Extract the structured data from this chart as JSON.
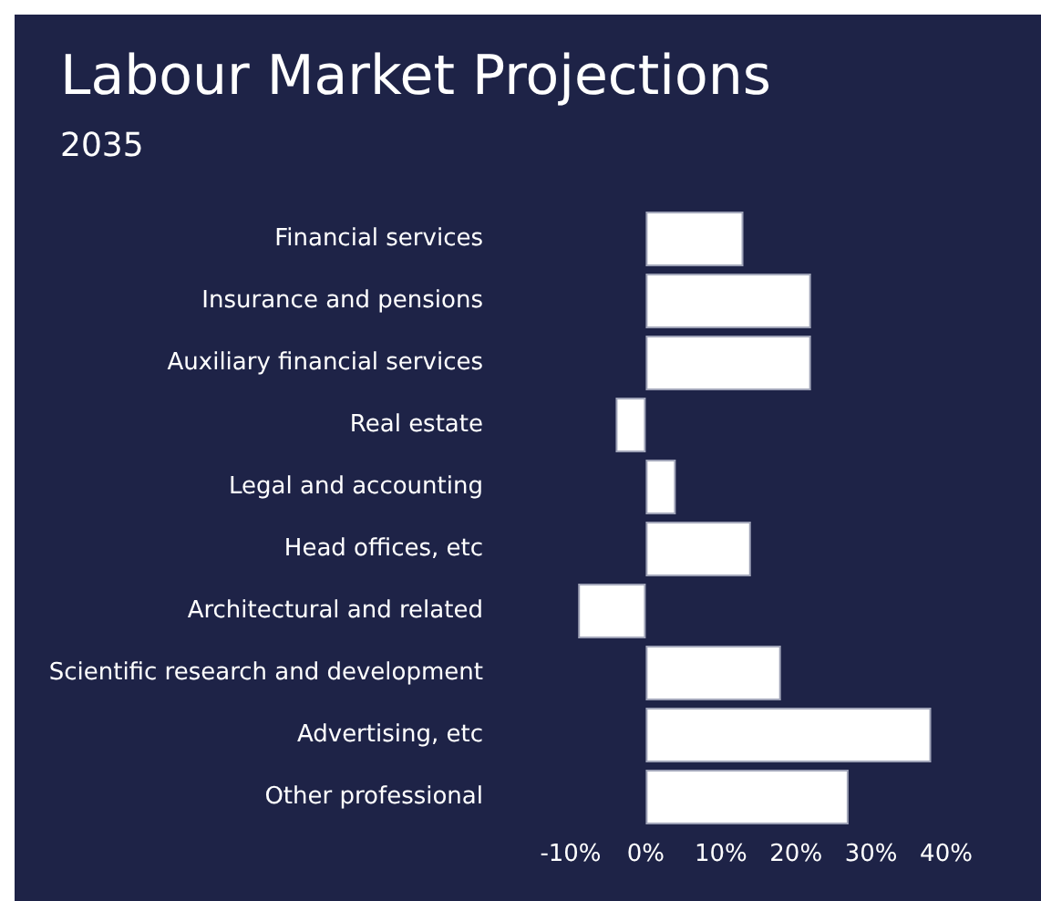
{
  "chart_data": {
    "type": "bar",
    "orientation": "horizontal",
    "title": "Labour Market Projections",
    "subtitle": "2035",
    "categories": [
      "Financial services",
      "Insurance and pensions",
      "Auxiliary financial services",
      "Real estate",
      "Legal and accounting",
      "Head offices, etc",
      "Architectural and related",
      "Scientific research and development",
      "Advertising, etc",
      "Other professional"
    ],
    "values": [
      13,
      22,
      22,
      -4,
      4,
      14,
      -9,
      18,
      38,
      27
    ],
    "color": "#ffffff",
    "xlim": [
      -10,
      40
    ],
    "xticks": [
      {
        "value": -10,
        "label": "-10%"
      },
      {
        "value": 0,
        "label": "0%"
      },
      {
        "value": 10,
        "label": "10%"
      },
      {
        "value": 20,
        "label": "20%"
      },
      {
        "value": 30,
        "label": "30%"
      },
      {
        "value": 40,
        "label": "40%"
      }
    ],
    "grid": false
  }
}
